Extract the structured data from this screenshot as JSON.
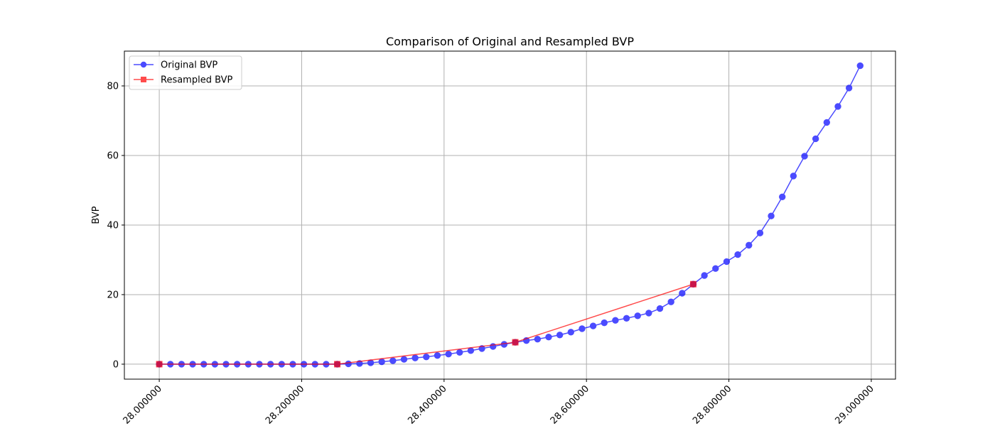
{
  "chart_data": {
    "type": "line",
    "title": "Comparison of Original and Resampled BVP",
    "xlabel": "",
    "ylabel": "BVP",
    "xlim": [
      27.951,
      29.034
    ],
    "ylim": [
      -4.3,
      90.0
    ],
    "grid": true,
    "legend_position": "top-left",
    "x_ticks": [
      28.0,
      28.2,
      28.4,
      28.6,
      28.8,
      29.0
    ],
    "x_tick_labels": [
      "28.000000",
      "28.200000",
      "28.400000",
      "28.600000",
      "28.800000",
      "29.000000"
    ],
    "y_ticks": [
      0,
      20,
      40,
      60,
      80
    ],
    "y_tick_labels": [
      "0",
      "20",
      "40",
      "60",
      "80"
    ],
    "series": [
      {
        "name": "Original BVP",
        "color": "#0000ff",
        "marker": "circle",
        "x": [
          28.0,
          28.015625,
          28.03125,
          28.046875,
          28.0625,
          28.078125,
          28.09375,
          28.109375,
          28.125,
          28.140625,
          28.15625,
          28.171875,
          28.1875,
          28.203125,
          28.21875,
          28.234375,
          28.25,
          28.265625,
          28.28125,
          28.296875,
          28.3125,
          28.328125,
          28.34375,
          28.359375,
          28.375,
          28.390625,
          28.40625,
          28.421875,
          28.4375,
          28.453125,
          28.46875,
          28.484375,
          28.5,
          28.515625,
          28.53125,
          28.546875,
          28.5625,
          28.578125,
          28.59375,
          28.609375,
          28.625,
          28.640625,
          28.65625,
          28.671875,
          28.6875,
          28.703125,
          28.71875,
          28.734375,
          28.75,
          28.765625,
          28.78125,
          28.796875,
          28.8125,
          28.828125,
          28.84375,
          28.859375,
          28.875,
          28.890625,
          28.90625,
          28.921875,
          28.9375,
          28.953125,
          28.96875,
          28.984375
        ],
        "values": [
          0,
          0,
          0,
          0,
          0,
          0,
          0,
          0,
          0,
          0,
          0,
          0,
          0,
          0,
          0,
          0,
          0,
          0.1,
          0.2,
          0.4,
          0.7,
          1.0,
          1.4,
          1.8,
          2.1,
          2.5,
          2.9,
          3.4,
          3.9,
          4.5,
          5.1,
          5.7,
          6.3,
          6.8,
          7.2,
          7.8,
          8.4,
          9.2,
          10.2,
          11.0,
          11.9,
          12.6,
          13.2,
          13.9,
          14.7,
          16.0,
          17.9,
          20.4,
          23.0,
          25.5,
          27.5,
          29.5,
          31.5,
          34.2,
          37.7,
          42.6,
          48.1,
          54.1,
          59.8,
          64.8,
          69.5,
          74.1,
          79.4,
          85.8
        ]
      },
      {
        "name": "Resampled BVP",
        "color": "#ff0000",
        "marker": "square",
        "x": [
          28.0,
          28.25,
          28.5,
          28.75
        ],
        "values": [
          0,
          0,
          6.3,
          23.0
        ]
      }
    ]
  }
}
